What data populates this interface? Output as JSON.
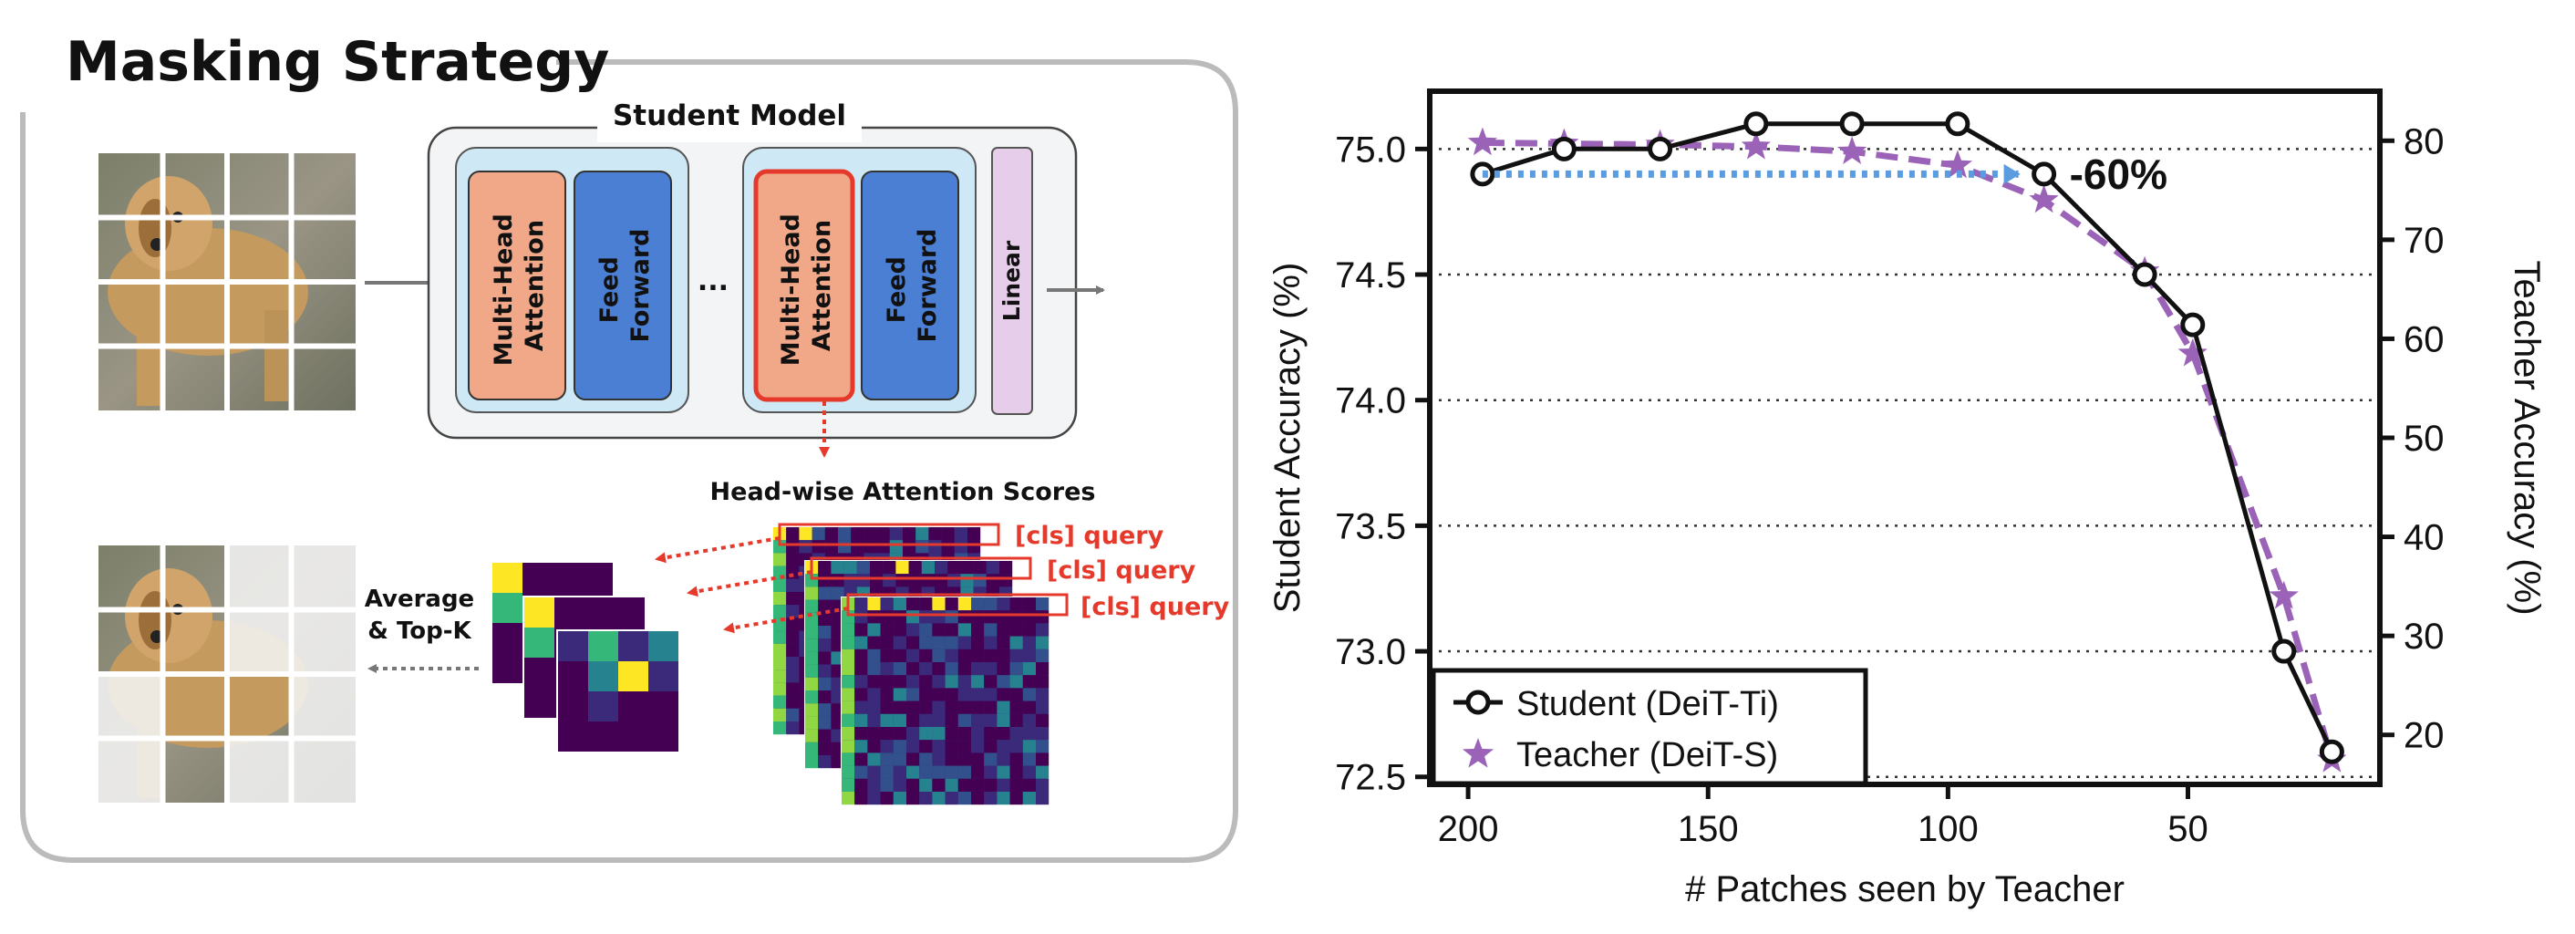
{
  "left": {
    "title": "Masking Strategy",
    "student_model_label": "Student Model",
    "blocks": {
      "mha": "Multi-Head Attention",
      "mha_line1": "Multi-Head",
      "mha_line2": "Attention",
      "ff_line1": "Feed",
      "ff_line2": "Forward",
      "ellipsis": "...",
      "linear": "Linear"
    },
    "attention_title": "Head-wise Attention Scores",
    "cls_query": "[cls] query",
    "avg_line1": "Average",
    "avg_line2": "& Top-K",
    "colors": {
      "mha_fill": "#f0a889",
      "ff_fill": "#4a7fd4",
      "linear_fill": "#e6cdea",
      "block_bg": "#cfe8f5",
      "accent_red": "#e5392b"
    }
  },
  "chart_data": {
    "type": "line",
    "xlabel": "# Patches seen by Teacher",
    "ylabel": "Student Accuracy (%)",
    "y2label": "Teacher Accuracy (%)",
    "xlim": [
      208,
      10
    ],
    "x_reversed": true,
    "ylim": [
      72.47,
      75.23
    ],
    "y2lim": [
      15,
      85
    ],
    "x_ticks": [
      200,
      150,
      100,
      50
    ],
    "y_ticks": [
      72.5,
      73.0,
      73.5,
      74.0,
      74.5,
      75.0
    ],
    "y_tick_labels": [
      "72.5",
      "73.0",
      "73.5",
      "74.0",
      "74.5",
      "75.0"
    ],
    "y2_ticks": [
      20,
      30,
      40,
      50,
      60,
      70,
      80
    ],
    "grid": "horizontal-dotted",
    "legend_position": "bottom-left",
    "annotation": {
      "text": "-60%",
      "color": "#5b9be0",
      "from_x": 197,
      "to_x": 80,
      "y": 74.9
    },
    "series": [
      {
        "name": "Student (DeiT-Ti)",
        "axis": "left",
        "color": "#111111",
        "marker": "circle",
        "x": [
          197,
          180,
          160,
          140,
          120,
          98,
          80,
          59,
          49,
          30,
          20
        ],
        "y": [
          74.9,
          75.0,
          75.0,
          75.1,
          75.1,
          75.1,
          74.9,
          74.5,
          74.3,
          73.0,
          72.6
        ]
      },
      {
        "name": "Teacher (DeiT-S)",
        "axis": "right",
        "color": "#9b63b8",
        "marker": "star",
        "x": [
          197,
          180,
          160,
          140,
          120,
          98,
          80,
          59,
          49,
          30,
          20
        ],
        "y": [
          79.8,
          79.7,
          79.6,
          79.4,
          78.9,
          77.5,
          74.0,
          66.8,
          58.5,
          34.0,
          17.5
        ]
      }
    ]
  }
}
